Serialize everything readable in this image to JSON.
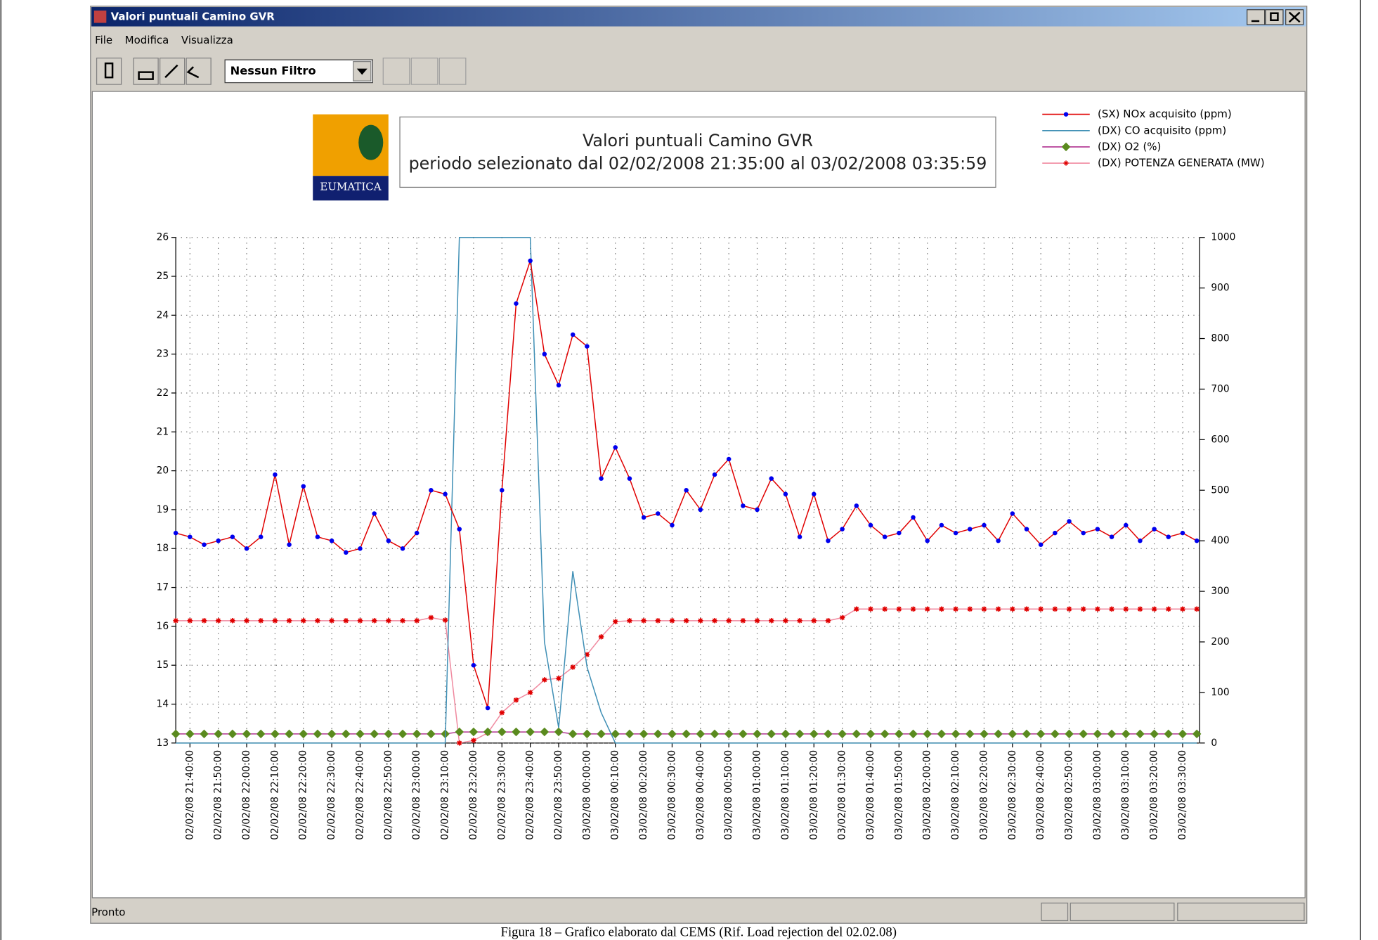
{
  "window": {
    "title": "Valori puntuali Camino GVR",
    "menu": [
      "File",
      "Modifica",
      "Visualizza"
    ],
    "filter": "Nessun Filtro",
    "status": "Pronto",
    "logo": "EUMATICA"
  },
  "caption": "Figura 18 – Grafico elaborato dal CEMS (Rif. Load rejection del 02.02.08)",
  "chart_data": {
    "type": "line",
    "title": "Valori puntuali Camino GVR",
    "subtitle": "periodo selezionato dal 02/02/2008 21:35:00 al 03/02/2008 03:35:59",
    "x": [
      "02/02/08 21:35:00",
      "02/02/08 21:40:00",
      "02/02/08 21:45:00",
      "02/02/08 21:50:00",
      "02/02/08 21:55:00",
      "02/02/08 22:00:00",
      "02/02/08 22:05:00",
      "02/02/08 22:10:00",
      "02/02/08 22:15:00",
      "02/02/08 22:20:00",
      "02/02/08 22:25:00",
      "02/02/08 22:30:00",
      "02/02/08 22:35:00",
      "02/02/08 22:40:00",
      "02/02/08 22:45:00",
      "02/02/08 22:50:00",
      "02/02/08 22:55:00",
      "02/02/08 23:00:00",
      "02/02/08 23:05:00",
      "02/02/08 23:10:00",
      "02/02/08 23:15:00",
      "02/02/08 23:20:00",
      "02/02/08 23:25:00",
      "02/02/08 23:30:00",
      "02/02/08 23:35:00",
      "02/02/08 23:40:00",
      "02/02/08 23:45:00",
      "02/02/08 23:50:00",
      "02/02/08 23:55:00",
      "03/02/08 00:00:00",
      "03/02/08 00:05:00",
      "03/02/08 00:10:00",
      "03/02/08 00:15:00",
      "03/02/08 00:20:00",
      "03/02/08 00:25:00",
      "03/02/08 00:30:00",
      "03/02/08 00:35:00",
      "03/02/08 00:40:00",
      "03/02/08 00:45:00",
      "03/02/08 00:50:00",
      "03/02/08 00:55:00",
      "03/02/08 01:00:00",
      "03/02/08 01:05:00",
      "03/02/08 01:10:00",
      "03/02/08 01:15:00",
      "03/02/08 01:20:00",
      "03/02/08 01:25:00",
      "03/02/08 01:30:00",
      "03/02/08 01:35:00",
      "03/02/08 01:40:00",
      "03/02/08 01:45:00",
      "03/02/08 01:50:00",
      "03/02/08 01:55:00",
      "03/02/08 02:00:00",
      "03/02/08 02:05:00",
      "03/02/08 02:10:00",
      "03/02/08 02:15:00",
      "03/02/08 02:20:00",
      "03/02/08 02:25:00",
      "03/02/08 02:30:00",
      "03/02/08 02:35:00",
      "03/02/08 02:40:00",
      "03/02/08 02:45:00",
      "03/02/08 02:50:00",
      "03/02/08 02:55:00",
      "03/02/08 03:00:00",
      "03/02/08 03:05:00",
      "03/02/08 03:10:00",
      "03/02/08 03:15:00",
      "03/02/08 03:20:00",
      "03/02/08 03:25:00",
      "03/02/08 03:30:00",
      "03/02/08 03:35:00"
    ],
    "xlim": [
      "02/02/08 21:35:00",
      "03/02/08 03:35:59"
    ],
    "xticks": [
      "02/02/08 21:40:00",
      "02/02/08 21:50:00",
      "02/02/08 22:00:00",
      "02/02/08 22:10:00",
      "02/02/08 22:20:00",
      "02/02/08 22:30:00",
      "02/02/08 22:40:00",
      "02/02/08 22:50:00",
      "02/02/08 23:00:00",
      "02/02/08 23:10:00",
      "02/02/08 23:20:00",
      "02/02/08 23:30:00",
      "02/02/08 23:40:00",
      "02/02/08 23:50:00",
      "03/02/08 00:00:00",
      "03/02/08 00:10:00",
      "03/02/08 00:20:00",
      "03/02/08 00:30:00",
      "03/02/08 00:40:00",
      "03/02/08 00:50:00",
      "03/02/08 01:00:00",
      "03/02/08 01:10:00",
      "03/02/08 01:20:00",
      "03/02/08 01:30:00",
      "03/02/08 01:40:00",
      "03/02/08 01:50:00",
      "03/02/08 02:00:00",
      "03/02/08 02:10:00",
      "03/02/08 02:20:00",
      "03/02/08 02:30:00",
      "03/02/08 02:40:00",
      "03/02/08 02:50:00",
      "03/02/08 03:00:00",
      "03/02/08 03:10:00",
      "03/02/08 03:20:00",
      "03/02/08 03:30:00"
    ],
    "ylim": [
      13,
      26
    ],
    "yticks": [
      13,
      14,
      15,
      16,
      17,
      18,
      19,
      20,
      21,
      22,
      23,
      24,
      25,
      26
    ],
    "y2lim": [
      0,
      1000
    ],
    "y2ticks": [
      0,
      100,
      200,
      300,
      400,
      500,
      600,
      700,
      800,
      900,
      1000
    ],
    "grid": true,
    "series": [
      {
        "name": "(SX) NOx acquisito (ppm)",
        "color": "#e00000",
        "marker": "circle",
        "marker_color": "#0000ee",
        "values": [
          18.4,
          18.3,
          18.1,
          18.2,
          18.3,
          18.0,
          18.3,
          19.9,
          18.1,
          19.6,
          18.3,
          18.2,
          17.9,
          18.0,
          18.9,
          18.2,
          18.0,
          18.4,
          19.5,
          19.4,
          18.5,
          15.0,
          13.9,
          19.5,
          24.3,
          25.4,
          23.0,
          22.2,
          23.5,
          23.2,
          19.8,
          20.6,
          19.8,
          18.8,
          18.9,
          18.6,
          19.5,
          19.0,
          19.9,
          20.3,
          19.1,
          19.0,
          19.8,
          19.4,
          18.3,
          19.4,
          18.2,
          18.5,
          19.1,
          18.6,
          18.3,
          18.4,
          18.8,
          18.2,
          18.6,
          18.4,
          18.5,
          18.6,
          18.2,
          18.9,
          18.5,
          18.1,
          18.4,
          18.7,
          18.4,
          18.5,
          18.3,
          18.6,
          18.2,
          18.5,
          18.3,
          18.4,
          18.2
        ]
      },
      {
        "name": "(DX) CO acquisito (ppm)",
        "color": "#3f8fb5",
        "marker": "none",
        "axis": "y2",
        "values": [
          0,
          0,
          0,
          0,
          0,
          0,
          0,
          0,
          0,
          0,
          0,
          0,
          0,
          0,
          0,
          0,
          0,
          0,
          0,
          0,
          1000,
          1000,
          1000,
          1000,
          1000,
          1000,
          200,
          30,
          340,
          150,
          60,
          0,
          0,
          0,
          0,
          0,
          0,
          0,
          0,
          0,
          0,
          0,
          0,
          0,
          0,
          0,
          0,
          0,
          0,
          0,
          0,
          0,
          0,
          0,
          0,
          0,
          0,
          0,
          0,
          0,
          0,
          0,
          0,
          0,
          0,
          0,
          0,
          0,
          0,
          0,
          0,
          0,
          0
        ]
      },
      {
        "name": "(DX) O2 (%)",
        "color": "#b03090",
        "marker": "diamond",
        "marker_color": "#5a8a1e",
        "axis": "y2",
        "values": [
          18,
          18,
          18,
          18,
          18,
          18,
          18,
          18,
          18,
          18,
          18,
          18,
          18,
          18,
          18,
          18,
          18,
          18,
          18,
          18,
          22,
          22,
          22,
          22,
          22,
          22,
          22,
          22,
          18,
          18,
          18,
          18,
          18,
          18,
          18,
          18,
          18,
          18,
          18,
          18,
          18,
          18,
          18,
          18,
          18,
          18,
          18,
          18,
          18,
          18,
          18,
          18,
          18,
          18,
          18,
          18,
          18,
          18,
          18,
          18,
          18,
          18,
          18,
          18,
          18,
          18,
          18,
          18,
          18,
          18,
          18,
          18,
          18
        ]
      },
      {
        "name": "(DX) POTENZA GENERATA (MW)",
        "color": "#f08aa0",
        "marker": "star",
        "marker_color": "#e00000",
        "axis": "y2",
        "values": [
          242,
          242,
          242,
          242,
          242,
          242,
          242,
          242,
          242,
          242,
          242,
          242,
          242,
          242,
          242,
          242,
          242,
          242,
          248,
          243,
          0,
          5,
          20,
          60,
          85,
          100,
          125,
          128,
          150,
          175,
          210,
          240,
          242,
          242,
          242,
          242,
          242,
          242,
          242,
          242,
          242,
          242,
          242,
          242,
          242,
          242,
          242,
          248,
          265,
          265,
          265,
          265,
          265,
          265,
          265,
          265,
          265,
          265,
          265,
          265,
          265,
          265,
          265,
          265,
          265,
          265,
          265,
          265,
          265,
          265,
          265,
          265,
          265
        ]
      }
    ]
  }
}
